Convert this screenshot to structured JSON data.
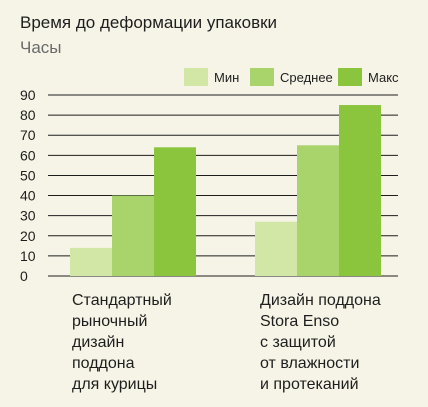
{
  "chart_data": {
    "type": "bar",
    "title": "Время до деформации упаковки",
    "subtitle": "Часы",
    "xlabel": "",
    "ylabel": "",
    "ylim": [
      0,
      90
    ],
    "yticks": [
      0,
      10,
      20,
      30,
      40,
      50,
      60,
      70,
      80,
      90
    ],
    "grid": true,
    "legend_position": "top-right",
    "categories": [
      [
        "Стандартный",
        "рыночный",
        "дизайн",
        "поддона",
        "для курицы"
      ],
      [
        "Дизайн поддона",
        "Stora Enso",
        "с защитой",
        "от влажности",
        "и протеканий"
      ]
    ],
    "series": [
      {
        "name": "Мин",
        "values": [
          14,
          27
        ],
        "color": "#D2E6A6"
      },
      {
        "name": "Среднее",
        "values": [
          40,
          65
        ],
        "color": "#A9D46C"
      },
      {
        "name": "Макс",
        "values": [
          64,
          85
        ],
        "color": "#8BC43D"
      }
    ],
    "colors": {
      "background": "#F6F4E6",
      "text": "#1E1E1E",
      "subtitle": "#6A6A6A",
      "axis": "#1E1E1E"
    }
  }
}
